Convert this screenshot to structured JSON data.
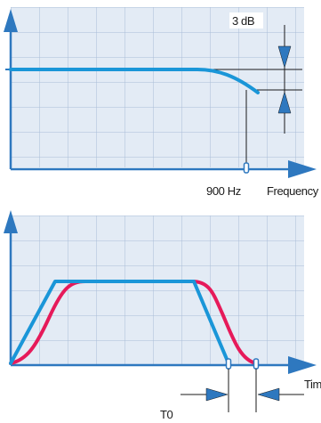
{
  "frequency_response": {
    "attenuation_label": "3 dB",
    "cutoff_label": "900 Hz",
    "x_axis_label": "Frequency"
  },
  "time_response": {
    "x_axis_label": "Tim",
    "delay_label": "T0"
  },
  "colors": {
    "grid_fill": "#e3ebf5",
    "grid_line": "#a9bdd8",
    "axis": "#2e78bf",
    "blue_curve": "#1a96d8",
    "red_curve": "#e61a5a",
    "dimension_line": "#1a1a1a"
  }
}
